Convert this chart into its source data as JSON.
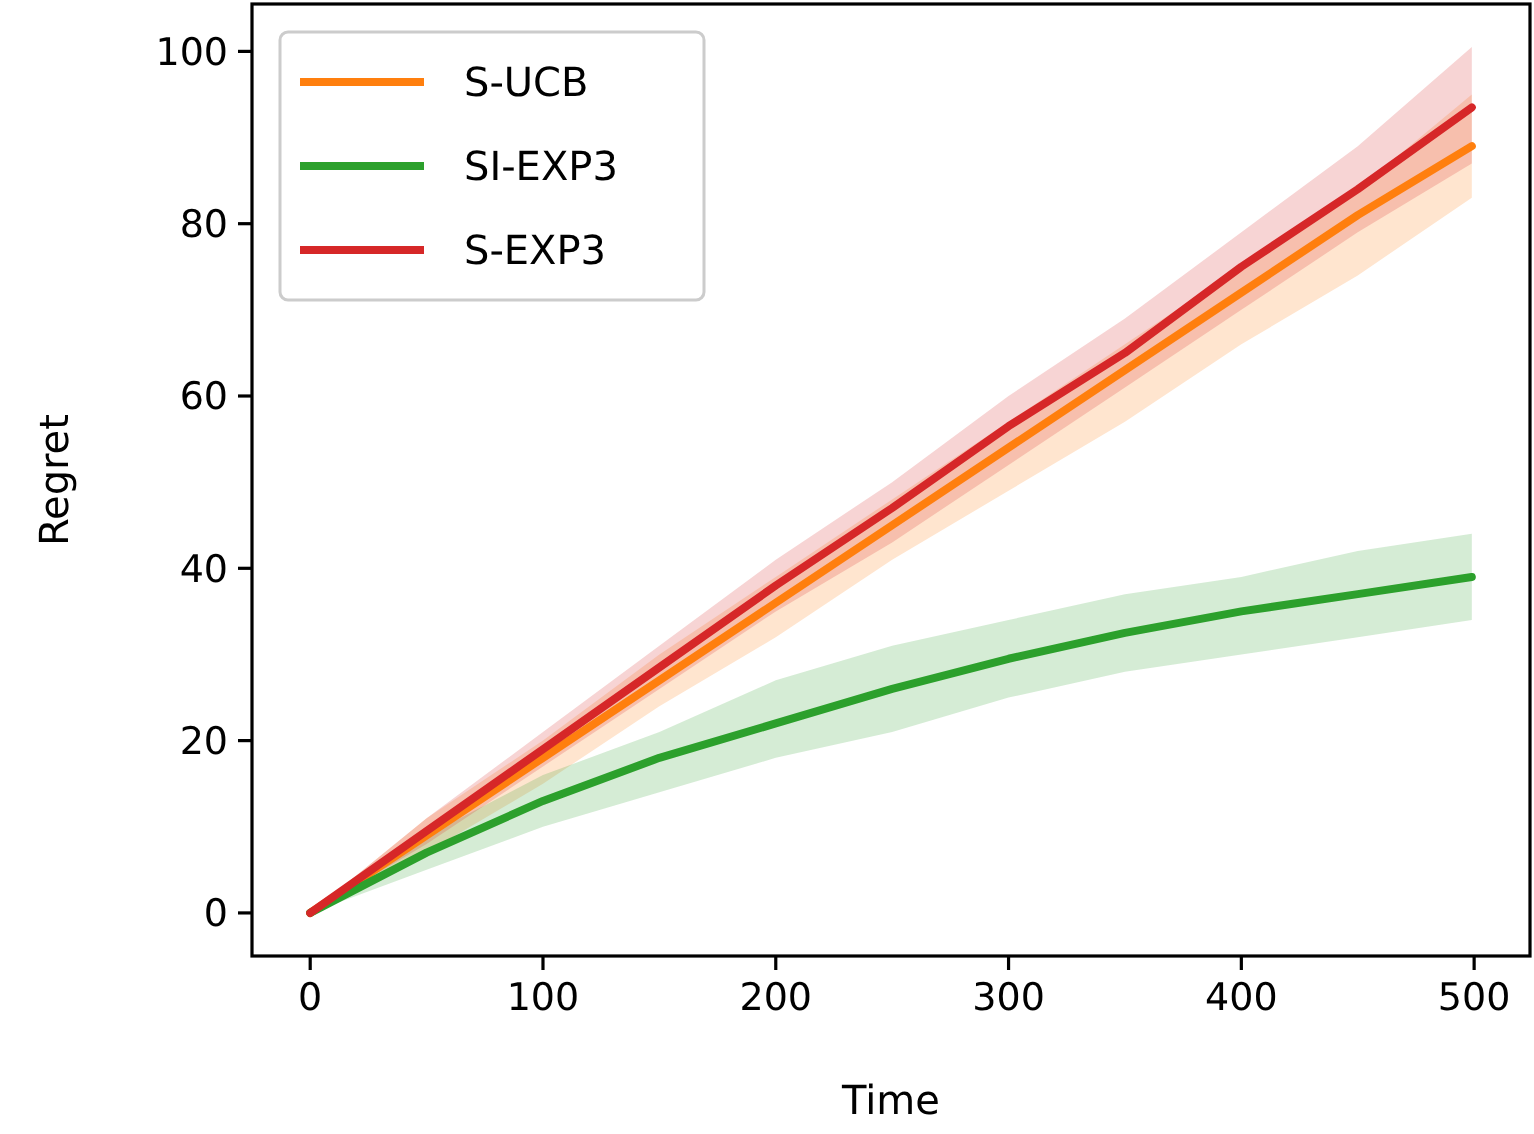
{
  "chart_data": {
    "type": "line",
    "xlabel": "Time",
    "ylabel": "Regret",
    "x": [
      0,
      50,
      100,
      150,
      200,
      250,
      300,
      350,
      400,
      450,
      499
    ],
    "xlim": [
      -25,
      524
    ],
    "ylim": [
      -5,
      105.5
    ],
    "xticks": [
      0,
      100,
      200,
      300,
      400,
      500
    ],
    "yticks": [
      0,
      20,
      40,
      60,
      80,
      100
    ],
    "grid": false,
    "legend": "top left",
    "line_style": "solid",
    "marker": "none",
    "series": [
      {
        "name": "S-UCB",
        "color": "#ff7f0e",
        "values": [
          0,
          9,
          18,
          27,
          36,
          45,
          54,
          63,
          72,
          81,
          89
        ],
        "lower": [
          0,
          7,
          15,
          24,
          32,
          41,
          49,
          57,
          66,
          74,
          83
        ],
        "upper": [
          0,
          11,
          20,
          30,
          39,
          48,
          57,
          66,
          75,
          84,
          95
        ]
      },
      {
        "name": "SI-EXP3",
        "color": "#2ca02c",
        "values": [
          0,
          7,
          13,
          18,
          22,
          26,
          29.5,
          32.5,
          35,
          37,
          39
        ],
        "lower": [
          0,
          5,
          10,
          14,
          18,
          21,
          25,
          28,
          30,
          32,
          34
        ],
        "upper": [
          0,
          9,
          16,
          21,
          27,
          31,
          34,
          37,
          39,
          42,
          44
        ]
      },
      {
        "name": "S-EXP3",
        "color": "#d62728",
        "values": [
          0,
          9.5,
          19,
          28.5,
          38,
          47,
          56.5,
          65,
          75,
          84,
          93.5
        ],
        "lower": [
          0,
          8,
          17,
          26,
          35,
          43,
          52,
          61,
          70,
          79,
          87
        ],
        "upper": [
          0,
          11,
          21,
          31,
          41,
          50,
          60,
          69,
          79,
          89,
          100.5
        ]
      }
    ]
  }
}
